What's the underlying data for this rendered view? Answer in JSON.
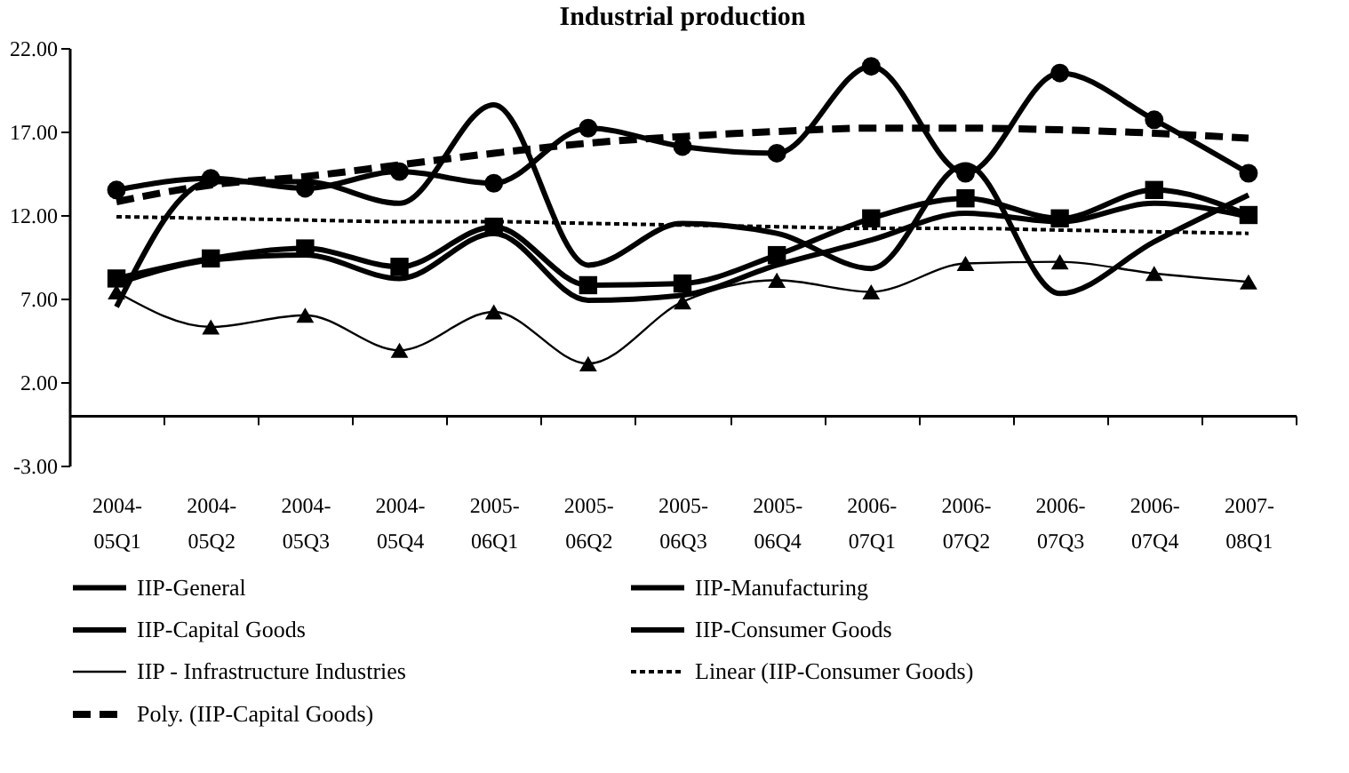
{
  "chart_data": {
    "type": "line",
    "title": "Industrial production",
    "categories": [
      "2004-05Q1",
      "2004-05Q2",
      "2004-05Q3",
      "2004-05Q4",
      "2005-06Q1",
      "2005-06Q2",
      "2005-06Q3",
      "2005-06Q4",
      "2006-07Q1",
      "2006-07Q2",
      "2006-07Q3",
      "2006-07Q4",
      "2007-08Q1"
    ],
    "series": [
      {
        "name": "IIP-General",
        "color": "#000000",
        "type": "line",
        "marker": "none",
        "line_style": "solid",
        "values": [
          7.9,
          9.3,
          9.6,
          8.2,
          10.9,
          6.9,
          7.2,
          9.0,
          10.5,
          12.1,
          11.6,
          12.7,
          11.9
        ]
      },
      {
        "name": "IIP-Manufacturing",
        "color": "#000000",
        "type": "line",
        "marker": "square",
        "line_style": "solid",
        "values": [
          8.2,
          9.4,
          10.0,
          8.9,
          11.3,
          7.8,
          7.9,
          9.6,
          11.8,
          13.0,
          11.8,
          13.5,
          12.0
        ]
      },
      {
        "name": "IIP-Capital Goods",
        "color": "#000000",
        "type": "line",
        "marker": "circle",
        "line_style": "solid",
        "values": [
          13.5,
          14.2,
          13.6,
          14.6,
          13.9,
          17.2,
          16.1,
          15.7,
          20.9,
          14.5,
          20.5,
          17.7,
          14.5
        ]
      },
      {
        "name": "IIP-Consumer Goods",
        "color": "#000000",
        "type": "line",
        "marker": "none",
        "line_style": "solid",
        "values": [
          6.5,
          14.0,
          14.0,
          12.7,
          18.6,
          9.0,
          11.5,
          10.9,
          8.8,
          15.0,
          7.3,
          10.4,
          13.2
        ]
      },
      {
        "name": "IIP - Infrastructure Industries",
        "color": "#000000",
        "type": "line",
        "marker": "triangle",
        "line_style": "solid",
        "values": [
          7.4,
          5.3,
          6.0,
          3.9,
          6.2,
          3.1,
          6.8,
          8.1,
          7.4,
          9.1,
          9.2,
          8.5,
          8.0
        ]
      },
      {
        "name": "Linear (IIP-Consumer Goods)",
        "color": "#000000",
        "type": "line",
        "marker": "none",
        "line_style": "dotted",
        "values": [
          11.9,
          11.8,
          11.7,
          11.6,
          11.6,
          11.5,
          11.4,
          11.3,
          11.2,
          11.2,
          11.1,
          11.0,
          10.9
        ]
      },
      {
        "name": "Poly. (IIP-Capital Goods)",
        "color": "#000000",
        "type": "line",
        "marker": "none",
        "line_style": "dashed",
        "values": [
          12.8,
          13.8,
          14.3,
          15.0,
          15.7,
          16.3,
          16.7,
          17.0,
          17.2,
          17.2,
          17.1,
          16.9,
          16.6
        ]
      }
    ],
    "ylim": [
      -3,
      22
    ],
    "yticks": [
      {
        "value": -3,
        "label": "-3.00"
      },
      {
        "value": 2,
        "label": "2.00"
      },
      {
        "value": 7,
        "label": "7.00"
      },
      {
        "value": 12,
        "label": "12.00"
      },
      {
        "value": 17,
        "label": "17.00"
      },
      {
        "value": 22,
        "label": "22.00"
      }
    ],
    "grid": false,
    "legend": "bottom"
  }
}
